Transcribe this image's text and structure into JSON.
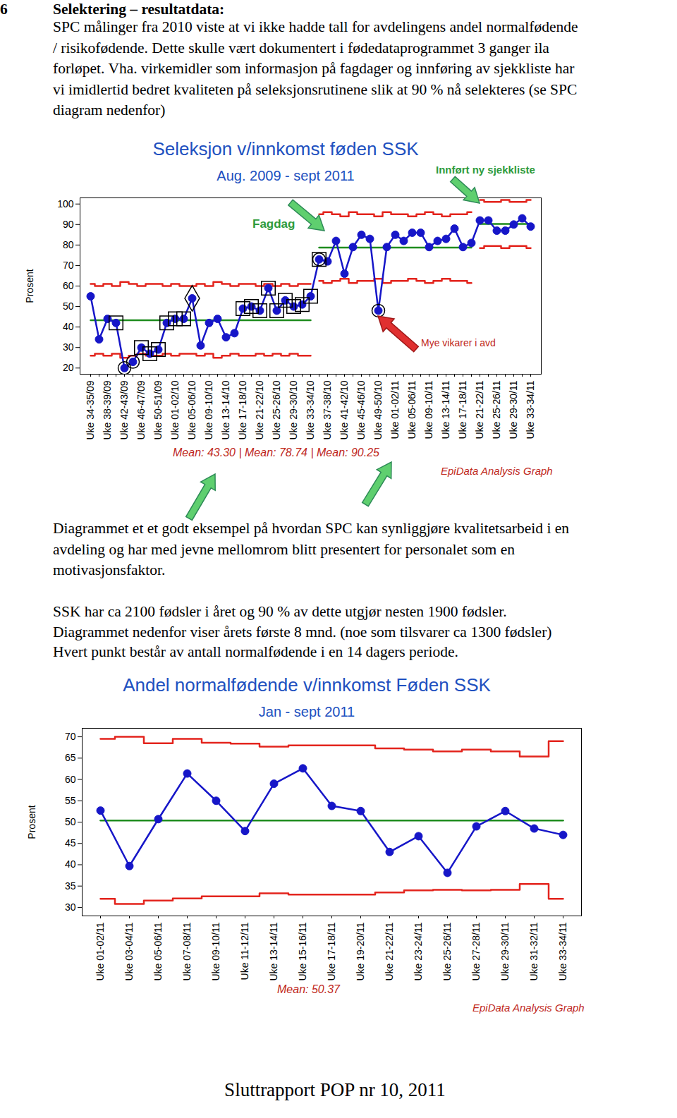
{
  "document": {
    "section_number": "6",
    "section_title": "Selektering – resultatdata:",
    "intro_lines": [
      "SPC målinger fra 2010 viste at vi ikke hadde tall for avdelingens andel normalfødende",
      "/ risikofødende. Dette skulle vært dokumentert i fødedataprogrammet 3 ganger ila",
      "forløpet. Vha. virkemidler som informasjon på fagdager og innføring av sjekkliste har",
      "vi imidlertid bedret kvaliteten på seleksjonsrutinene slik at 90 % nå selekteres (se SPC",
      "diagram nedenfor)"
    ],
    "middle_lines": [
      "Diagrammet et et godt eksempel på hvordan SPC kan synliggjøre kvalitetsarbeid i en",
      "avdeling og har med jevne mellomrom blitt presentert for personalet som en",
      "motivasjonsfaktor."
    ],
    "lower_lines": [
      "SSK har ca 2100 fødsler i året og 90 % av dette utgjør nesten 1900 fødsler.",
      "Diagrammet nedenfor viser årets første 8 mnd. (noe som tilsvarer ca 1300 fødsler)",
      "Hvert punkt består av antall normalfødende i en 14 dagers periode."
    ],
    "footer": "Sluttrapport POP nr 10, 2011"
  },
  "chart_data": [
    {
      "type": "line",
      "title": "Seleksjon v/innkomst føden SSK",
      "subtitle": "Aug. 2009 - sept 2011",
      "y_label": "Prosent",
      "categories": [
        "Uke 34-35/09",
        null,
        "Uke 38-39/09",
        null,
        "Uke 42-43/09",
        null,
        "Uke 46-47/09",
        null,
        "Uke 50-51/09",
        null,
        "Uke 01-02/10",
        null,
        "Uke 05-06/10",
        null,
        "Uke 09-10/10",
        null,
        "Uke 13-14/10",
        null,
        "Uke 17-18/10",
        null,
        "Uke 21-22/10",
        null,
        "Uke 25-26/10",
        null,
        "Uke 29-30/10",
        null,
        "Uke 33-34/10",
        null,
        "Uke 37-38/10",
        null,
        "Uke 41-42/10",
        null,
        "Uke 45-46/10",
        null,
        "Uke 49-50/10",
        null,
        "Uke 01-02/11",
        null,
        "Uke 05-06/11",
        null,
        "Uke 09-10/11",
        null,
        "Uke 13-14/11",
        null,
        "Uke 17-18/11",
        null,
        "Uke 21-22/11",
        null,
        "Uke 25-26/11",
        null,
        "Uke 29-30/11",
        null,
        "Uke 33-34/11"
      ],
      "series": [
        {
          "type": "line",
          "marker": "circle",
          "color": "#1616c8",
          "values": [
            55,
            34,
            44,
            42,
            20,
            23,
            30,
            27,
            29,
            42,
            44,
            44,
            54,
            31,
            42,
            44,
            35,
            37,
            49,
            50,
            48,
            59,
            48,
            53,
            50,
            51,
            55,
            73,
            72,
            82,
            66,
            79,
            85,
            83,
            48,
            79,
            85,
            82,
            86,
            86,
            79,
            82,
            83,
            88,
            79,
            81,
            92,
            92,
            87,
            87,
            90,
            93,
            89
          ]
        },
        {
          "type": "scatter",
          "marker": "square",
          "color": "#000000",
          "values": [
            null,
            null,
            null,
            42,
            null,
            null,
            30,
            27,
            29,
            42,
            44,
            44,
            null,
            null,
            null,
            null,
            null,
            null,
            49,
            50,
            48,
            59,
            48,
            53,
            50,
            51,
            55,
            73,
            null,
            null,
            null,
            null,
            null,
            null,
            null,
            null,
            null,
            null,
            null,
            null,
            null,
            null,
            null,
            null,
            null,
            null,
            null,
            null,
            null,
            null,
            null,
            null,
            null
          ]
        },
        {
          "type": "scatter",
          "marker": "ring",
          "color": "#000000",
          "values": [
            null,
            null,
            null,
            null,
            20,
            23,
            null,
            null,
            null,
            null,
            null,
            null,
            null,
            null,
            null,
            null,
            null,
            null,
            null,
            null,
            null,
            null,
            null,
            null,
            null,
            null,
            null,
            73,
            null,
            null,
            null,
            null,
            null,
            null,
            48,
            null,
            null,
            null,
            null,
            null,
            null,
            null,
            null,
            null,
            null,
            null,
            null,
            null,
            null,
            null,
            null,
            null,
            null
          ]
        },
        {
          "type": "scatter",
          "marker": "diamond",
          "color": "#000000",
          "values": [
            null,
            null,
            null,
            null,
            null,
            null,
            null,
            null,
            null,
            null,
            null,
            null,
            54,
            null,
            null,
            null,
            null,
            null,
            null,
            null,
            null,
            null,
            null,
            null,
            null,
            null,
            null,
            null,
            null,
            null,
            null,
            null,
            null,
            null,
            null,
            null,
            null,
            null,
            null,
            null,
            null,
            null,
            null,
            null,
            null,
            null,
            null,
            null,
            null,
            null,
            null,
            null,
            null
          ]
        }
      ],
      "upper_limit": [
        61,
        60,
        61,
        60,
        62,
        61,
        60,
        61,
        61,
        60,
        61,
        60,
        60,
        61,
        60,
        62,
        61,
        60,
        61,
        61,
        60,
        61,
        60,
        61,
        60,
        61,
        61,
        95,
        96,
        95,
        94,
        96,
        95,
        95,
        94,
        96,
        95,
        95,
        94,
        95,
        96,
        95,
        94,
        95,
        95,
        96,
        102,
        101,
        101,
        102,
        101,
        101,
        102
      ],
      "center_line": [
        43.3,
        43.3,
        43.3,
        43.3,
        43.3,
        43.3,
        43.3,
        43.3,
        43.3,
        43.3,
        43.3,
        43.3,
        43.3,
        43.3,
        43.3,
        43.3,
        43.3,
        43.3,
        43.3,
        43.3,
        43.3,
        43.3,
        43.3,
        43.3,
        43.3,
        43.3,
        43.3,
        78.74,
        78.74,
        78.74,
        78.74,
        78.74,
        78.74,
        78.74,
        78.74,
        78.74,
        78.74,
        78.74,
        78.74,
        78.74,
        78.74,
        78.74,
        78.74,
        78.74,
        78.74,
        78.74,
        90.25,
        90.25,
        90.25,
        90.25,
        90.25,
        90.25,
        90.25
      ],
      "lower_limit": [
        26,
        27,
        26,
        27,
        25,
        26,
        27,
        26,
        26,
        27,
        26,
        27,
        27,
        26,
        27,
        25,
        26,
        27,
        26,
        26,
        27,
        26,
        27,
        26,
        27,
        26,
        26,
        62.5,
        61.5,
        62.5,
        63.5,
        61.5,
        62.5,
        62.5,
        63.5,
        61.5,
        62.5,
        62.5,
        63.5,
        62.5,
        61.5,
        62.5,
        63.5,
        62.5,
        62.5,
        61.5,
        78.5,
        79.5,
        79.5,
        78.5,
        79.5,
        79.5,
        78.5
      ],
      "ylim": [
        17,
        103
      ],
      "yticks": [
        20,
        30,
        40,
        50,
        60,
        70,
        80,
        90,
        100
      ],
      "annotations": [
        "Fagdag",
        "Innført ny sjekkliste",
        "Mye vikarer i avd"
      ],
      "footnote": "Mean: 43.30 | Mean: 78.74 | Mean: 90.25",
      "source": "EpiData Analysis Graph"
    },
    {
      "type": "line",
      "title": "Andel normalfødende v/innkomst Føden SSK",
      "subtitle": "Jan  - sept 2011",
      "y_label": "Prosent",
      "categories": [
        "Uke 01-02/11",
        "Uke 03-04/11",
        "Uke 05-06/11",
        "Uke 07-08/11",
        "Uke 09-10/11",
        "Uke 11-12/11",
        "Uke 13-14/11",
        "Uke 15-16/11",
        "Uke 17-18/11",
        "Uke 19-20/11",
        "Uke 21-22/11",
        "Uke 23-24/11",
        "Uke 25-26/11",
        "Uke 27-28/11",
        "Uke 29-30/11",
        "Uke 31-32/11",
        "Uke 33-34/11"
      ],
      "series": [
        {
          "type": "line",
          "marker": "circle",
          "color": "#1616c8",
          "values": [
            52.7,
            39.7,
            50.7,
            61.4,
            55,
            47.9,
            59,
            62.6,
            53.8,
            52.6,
            43,
            46.7,
            38.1,
            49,
            52.6,
            48.5,
            47
          ]
        }
      ],
      "upper_limit": [
        69.5,
        70,
        68.5,
        69.5,
        68.6,
        68.4,
        67.7,
        68,
        68,
        68,
        67.3,
        67,
        66.6,
        67,
        66.6,
        65.4,
        69
      ],
      "center_line": [
        50.37,
        50.37,
        50.37,
        50.37,
        50.37,
        50.37,
        50.37,
        50.37,
        50.37,
        50.37,
        50.37,
        50.37,
        50.37,
        50.37,
        50.37,
        50.37,
        50.37
      ],
      "lower_limit": [
        32,
        30.8,
        31.6,
        32.1,
        32.6,
        32.6,
        33.3,
        33,
        33,
        33,
        33.5,
        34,
        34.1,
        34,
        34.1,
        35.5,
        32
      ],
      "ylim": [
        28,
        72
      ],
      "yticks": [
        30,
        35,
        40,
        45,
        50,
        55,
        60,
        65,
        70
      ],
      "footnote": "Mean: 50.37",
      "source": "EpiData Analysis Graph"
    }
  ]
}
